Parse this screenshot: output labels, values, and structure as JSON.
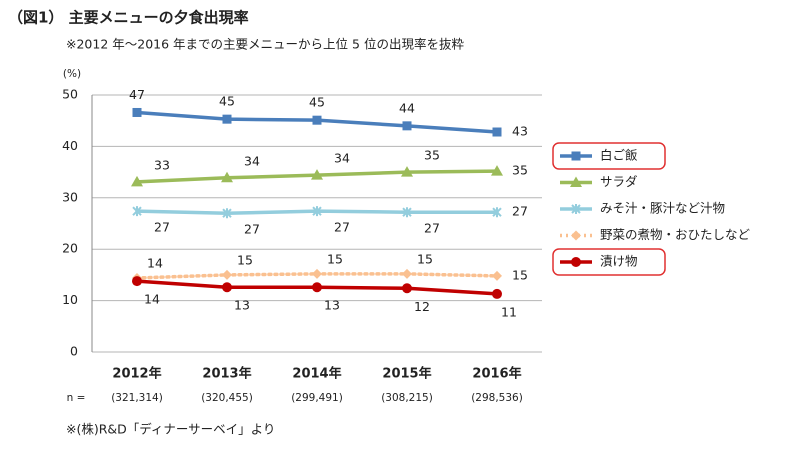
{
  "chart_data": {
    "type": "line",
    "title": "（図1） 主要メニューの夕食出現率",
    "subtitle": "※2012 年～2016 年までの主要メニューから上位 5 位の出現率を抜粋",
    "y_label": "(%)",
    "categories": [
      "2012年",
      "2013年",
      "2014年",
      "2015年",
      "2016年"
    ],
    "n_label": "n =",
    "sample_sizes": [
      "(321,314)",
      "(320,455)",
      "(299,491)",
      "(308,215)",
      "(298,536)"
    ],
    "source": "※(株)R&D「ディナーサーベイ」より",
    "ylim": [
      0,
      50
    ],
    "yticks": [
      0,
      10,
      20,
      30,
      40,
      50
    ],
    "grid": true,
    "series": [
      {
        "name": "白ご飯",
        "color": "#4a7ebb",
        "marker": "square",
        "highlight": true,
        "values": [
          46.6,
          45.3,
          45.1,
          44.0,
          42.8
        ],
        "value_labels": [
          "47",
          "45",
          "45",
          "44",
          "43"
        ]
      },
      {
        "name": "サラダ",
        "color": "#9bbb59",
        "marker": "triangle",
        "values": [
          33.1,
          33.9,
          34.4,
          35.0,
          35.2
        ],
        "value_labels": [
          "33",
          "34",
          "34",
          "35",
          "35"
        ]
      },
      {
        "name": "みそ汁・豚汁など汁物",
        "color": "#93cddd",
        "marker": "cross",
        "values": [
          27.4,
          27.0,
          27.4,
          27.2,
          27.2
        ],
        "value_labels": [
          "27",
          "27",
          "27",
          "27",
          "27"
        ]
      },
      {
        "name": "野菜の煮物・おひたしなど",
        "color": "#fac090",
        "marker": "diamond",
        "dashed": true,
        "values": [
          14.4,
          15.0,
          15.2,
          15.2,
          14.8
        ],
        "value_labels": [
          "14",
          "15",
          "15",
          "15",
          "15"
        ]
      },
      {
        "name": "漬け物",
        "color": "#c00000",
        "marker": "circle",
        "highlight": true,
        "values": [
          13.8,
          12.6,
          12.6,
          12.4,
          11.3
        ],
        "value_labels": [
          "14",
          "13",
          "13",
          "12",
          "11"
        ]
      }
    ]
  }
}
